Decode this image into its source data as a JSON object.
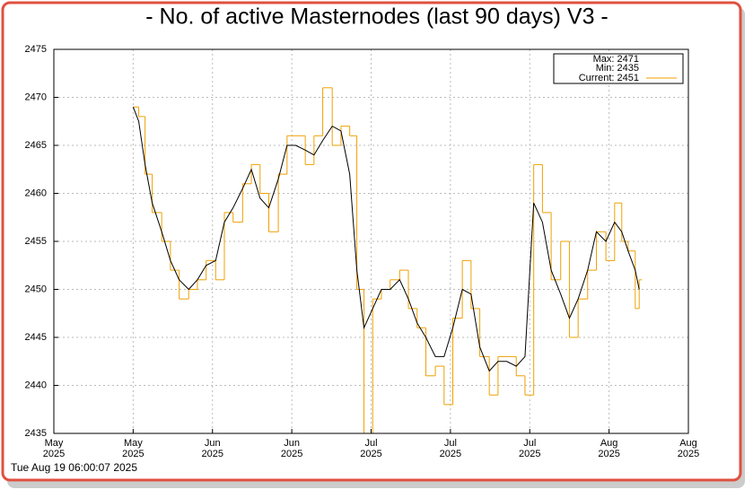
{
  "chart_data": {
    "type": "line",
    "title": "- No. of active Masternodes (last 90 days) V3 -",
    "timestamp": "Tue Aug 19 06:00:07 2025",
    "legend": [
      "Max: 2471",
      "Min: 2435",
      "Current: 2451"
    ],
    "ylim": [
      2435,
      2475
    ],
    "yticks": [
      2435,
      2440,
      2445,
      2450,
      2455,
      2460,
      2465,
      2470,
      2475
    ],
    "xlim": [
      0,
      8
    ],
    "xticks": [
      {
        "value": 0,
        "label": "May\n2025"
      },
      {
        "value": 1,
        "label": "May\n2025"
      },
      {
        "value": 2,
        "label": "Jun\n2025"
      },
      {
        "value": 3,
        "label": "Jun\n2025"
      },
      {
        "value": 4,
        "label": "Jul\n2025"
      },
      {
        "value": 5,
        "label": "Jul\n2025"
      },
      {
        "value": 6,
        "label": "Jul\n2025"
      },
      {
        "value": 7,
        "label": "Aug\n2025"
      },
      {
        "value": 8,
        "label": "Aug\n2025"
      }
    ],
    "grid": true,
    "x": [
      1.0,
      1.07,
      1.15,
      1.24,
      1.36,
      1.47,
      1.58,
      1.7,
      1.81,
      1.92,
      2.04,
      2.15,
      2.26,
      2.38,
      2.49,
      2.6,
      2.71,
      2.83,
      2.94,
      3.05,
      3.17,
      3.28,
      3.39,
      3.51,
      3.62,
      3.73,
      3.82,
      3.91,
      4.02,
      4.13,
      4.24,
      4.36,
      4.47,
      4.58,
      4.69,
      4.81,
      4.92,
      5.03,
      5.15,
      5.26,
      5.37,
      5.49,
      5.6,
      5.71,
      5.83,
      5.94,
      6.05,
      6.16,
      6.27,
      6.39,
      6.5,
      6.61,
      6.73,
      6.84,
      6.96,
      7.07,
      7.16,
      7.24,
      7.33,
      7.38
    ],
    "series": [
      {
        "color": "#f0a000",
        "style": "step",
        "values": [
          2469,
          2468,
          2462,
          2458,
          2455,
          2452,
          2449,
          2450,
          2451,
          2453,
          2451,
          2458,
          2457,
          2461,
          2463,
          2460,
          2456,
          2462,
          2466,
          2466,
          2463,
          2466,
          2471,
          2465,
          2467,
          2466,
          2450,
          2435,
          2449,
          2450,
          2451,
          2452,
          2448,
          2446,
          2441,
          2442,
          2438,
          2447,
          2453,
          2448,
          2443,
          2439,
          2443,
          2443,
          2441,
          2439,
          2463,
          2458,
          2451,
          2455,
          2445,
          2449,
          2452,
          2456,
          2453,
          2459,
          2455,
          2454,
          2448,
          2451
        ]
      },
      {
        "color": "#000000",
        "style": "line",
        "values": [
          2469,
          2467.5,
          2463,
          2459,
          2456,
          2453,
          2451,
          2450,
          2451,
          2452.5,
          2453,
          2457,
          2458.5,
          2460.5,
          2462.5,
          2459.5,
          2458.5,
          2461.5,
          2465,
          2465,
          2464.5,
          2464,
          2465.5,
          2467,
          2466.5,
          2462,
          2452,
          2446,
          2448,
          2450,
          2450,
          2451,
          2449,
          2446.5,
          2445,
          2443,
          2443,
          2446,
          2450,
          2449.5,
          2444,
          2441.5,
          2442.5,
          2442.5,
          2442,
          2443,
          2459,
          2457,
          2452,
          2449.5,
          2447,
          2449,
          2452,
          2456,
          2455,
          2457,
          2456,
          2454,
          2452,
          2450
        ]
      }
    ]
  }
}
